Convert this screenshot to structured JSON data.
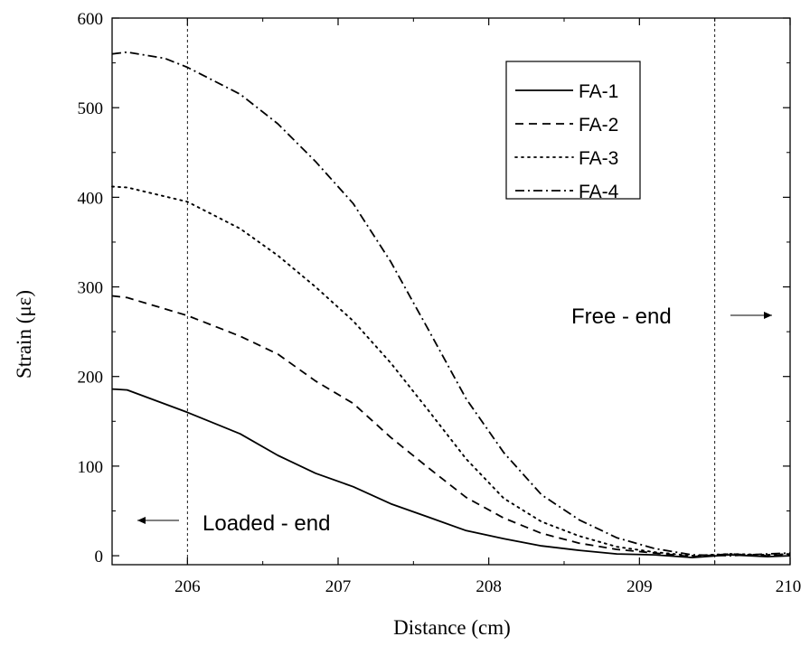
{
  "chart_data": {
    "type": "line",
    "title": "",
    "xlabel": "Distance (cm)",
    "ylabel": "Strain (με)",
    "xlim": [
      205.5,
      210
    ],
    "ylim": [
      -10,
      600
    ],
    "x_ticks": [
      206,
      207,
      208,
      209,
      210
    ],
    "y_ticks": [
      0,
      100,
      200,
      300,
      400,
      500,
      600
    ],
    "grid": false,
    "legend_position": "top-right",
    "reference_lines_x": [
      206,
      209.5
    ],
    "annotations": [
      {
        "text": "Loaded - end",
        "arrow": "left"
      },
      {
        "text": "Free - end",
        "arrow": "right"
      }
    ],
    "series": [
      {
        "name": "FA-1",
        "dash": "solid",
        "x": [
          205.5,
          205.6,
          206.0,
          206.35,
          206.6,
          206.85,
          207.1,
          207.35,
          207.6,
          207.85,
          208.1,
          208.35,
          208.6,
          208.85,
          209.1,
          209.35,
          209.6,
          209.85,
          210.0
        ],
        "y": [
          186,
          185,
          160,
          136,
          112,
          92,
          77,
          58,
          43,
          28,
          19,
          11,
          6,
          2,
          1,
          -2,
          1,
          -1,
          0
        ]
      },
      {
        "name": "FA-2",
        "dash": "dashed",
        "x": [
          205.5,
          205.6,
          206.0,
          206.35,
          206.6,
          206.85,
          207.1,
          207.35,
          207.6,
          207.85,
          208.1,
          208.35,
          208.6,
          208.85,
          209.1,
          209.35,
          209.6,
          209.85,
          210.0
        ],
        "y": [
          290,
          288,
          268,
          245,
          225,
          195,
          170,
          132,
          98,
          65,
          42,
          25,
          14,
          7,
          3,
          -1,
          2,
          0,
          1
        ]
      },
      {
        "name": "FA-3",
        "dash": "dotted",
        "x": [
          205.5,
          205.6,
          206.0,
          206.35,
          206.6,
          206.85,
          207.1,
          207.35,
          207.6,
          207.85,
          208.1,
          208.35,
          208.6,
          208.85,
          209.1,
          209.35,
          209.6,
          209.85,
          210.0
        ],
        "y": [
          412,
          411,
          395,
          365,
          335,
          300,
          262,
          215,
          162,
          108,
          64,
          38,
          22,
          10,
          4,
          0,
          2,
          1,
          2
        ]
      },
      {
        "name": "FA-4",
        "dash": "dashdot",
        "x": [
          205.5,
          205.6,
          205.85,
          206.0,
          206.35,
          206.6,
          206.85,
          207.1,
          207.35,
          207.6,
          207.85,
          208.1,
          208.35,
          208.6,
          208.85,
          209.1,
          209.35,
          209.6,
          209.85,
          210.0
        ],
        "y": [
          560,
          562,
          555,
          545,
          515,
          482,
          440,
          393,
          328,
          252,
          175,
          115,
          68,
          40,
          20,
          8,
          1,
          0,
          2,
          3
        ]
      }
    ]
  }
}
